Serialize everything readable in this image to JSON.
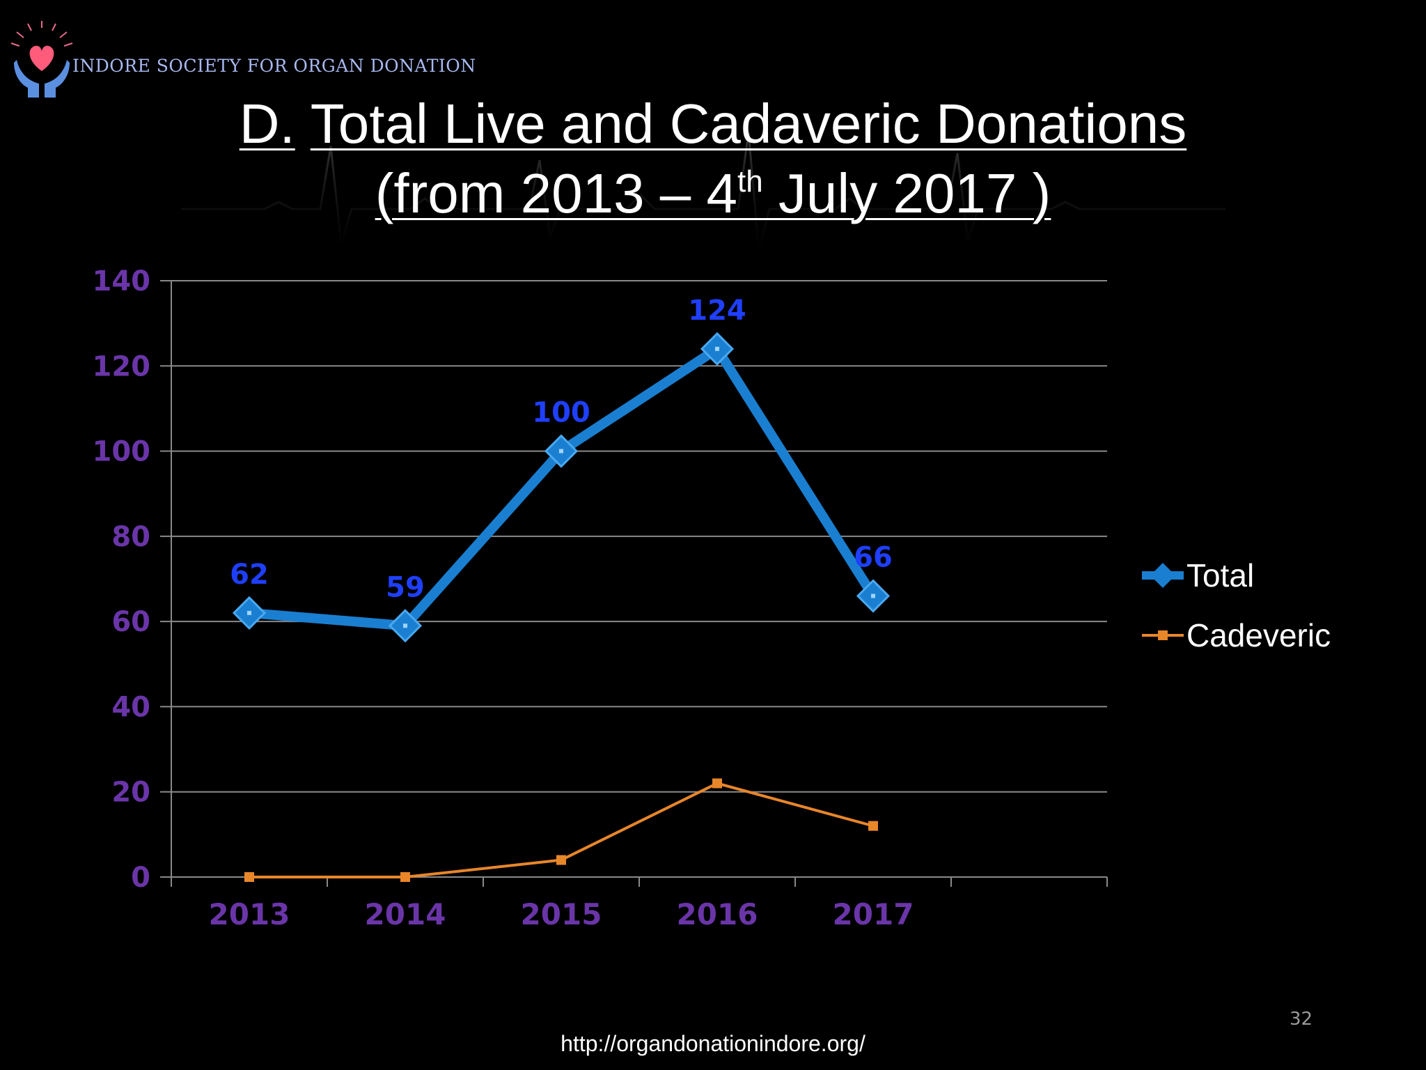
{
  "org_name": "INDORE SOCIETY FOR ORGAN DONATION",
  "title": {
    "prefix": "D.",
    "line1": "Total Live and Cadaveric Donations",
    "line2_before": " (from 2013 – 4",
    "line2_sup": "th",
    "line2_after": " July 2017 )"
  },
  "page_number": "32",
  "footer_url": "http://organdonationindore.org/",
  "chart_data": {
    "type": "line",
    "categories": [
      "2013",
      "2014",
      "2015",
      "2016",
      "2017"
    ],
    "ylim": [
      0,
      140
    ],
    "yticks": [
      0,
      20,
      40,
      60,
      80,
      100,
      120,
      140
    ],
    "grid": true,
    "legend_position": "right",
    "series": [
      {
        "name": "Total",
        "values": [
          62,
          59,
          100,
          124,
          66
        ],
        "color": "#1a7fd0",
        "marker": "diamond",
        "data_labels": [
          "62",
          "59",
          "100",
          "124",
          "66"
        ],
        "label_color": "#1f3fff"
      },
      {
        "name": "Cadeveric",
        "values": [
          0,
          0,
          4,
          22,
          12
        ],
        "color": "#e8862a",
        "marker": "square"
      }
    ],
    "axis_label_color": "#6a35a8"
  },
  "icons": [
    "heart-hands-logo-icon"
  ]
}
